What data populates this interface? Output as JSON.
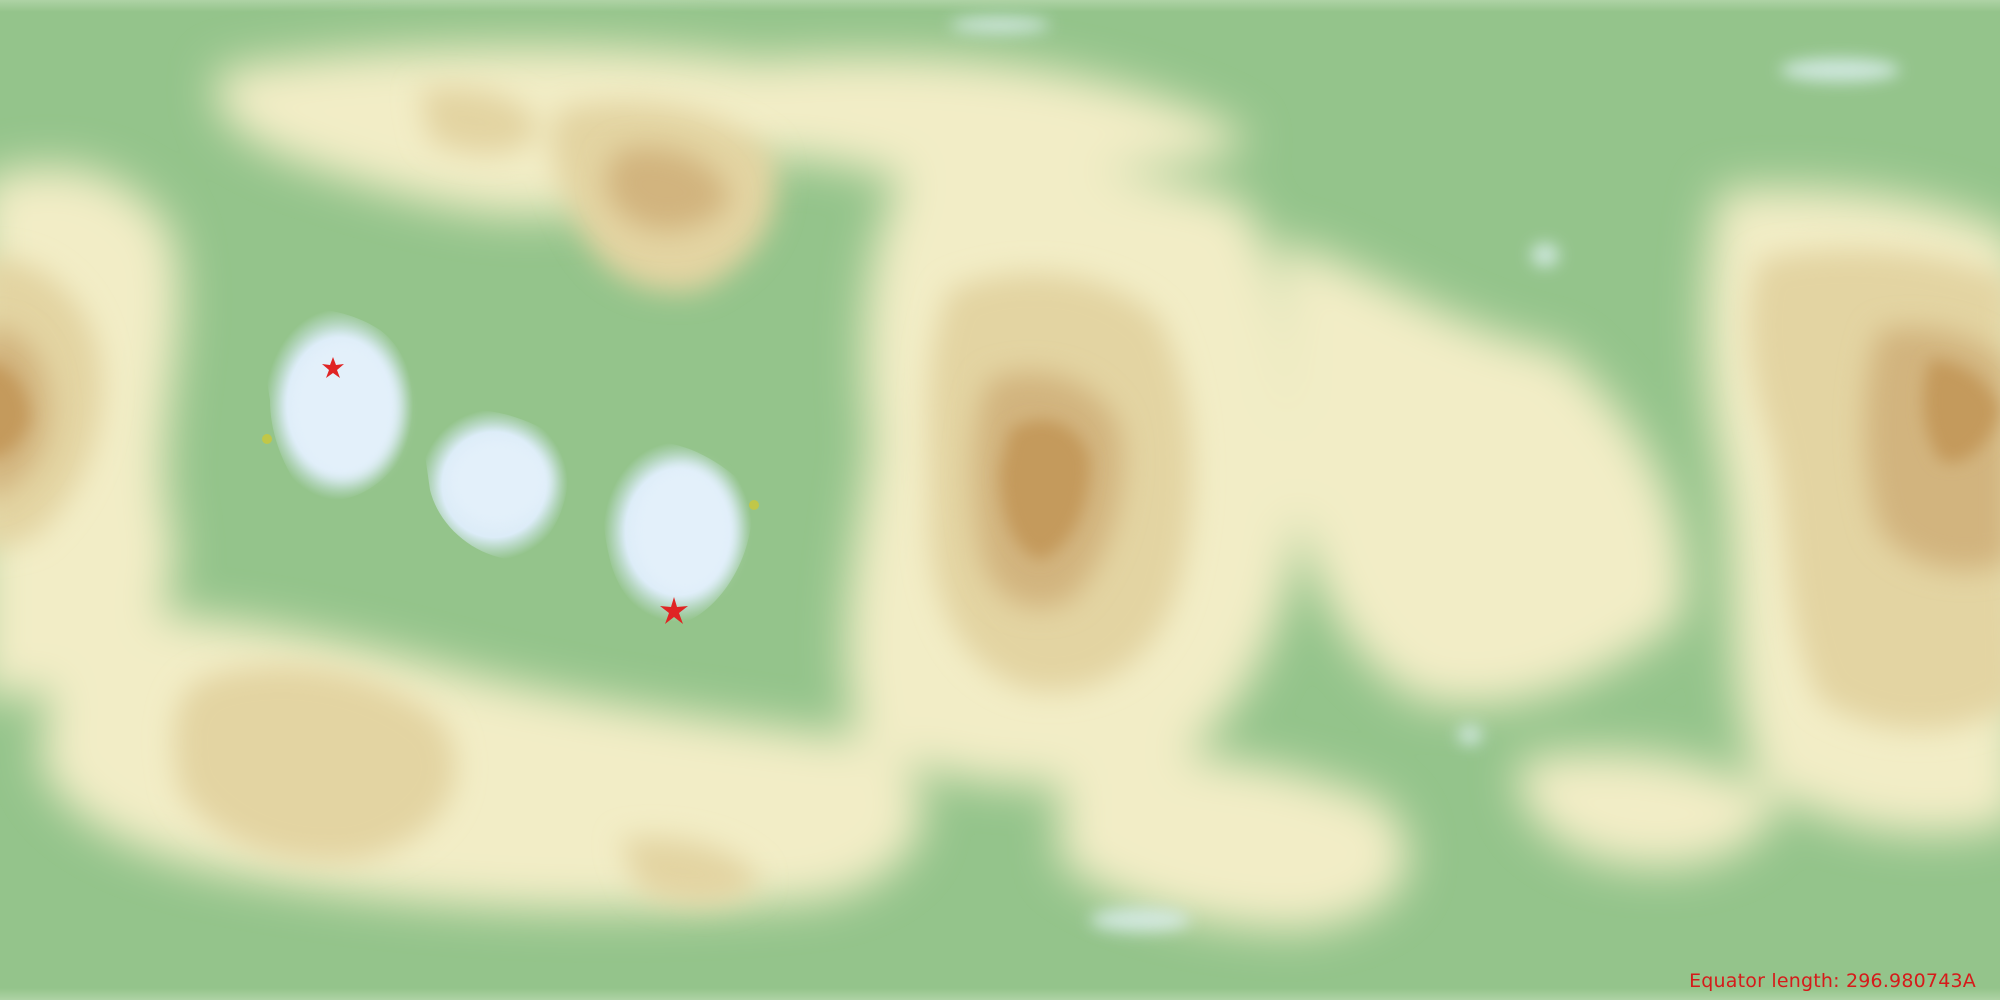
{
  "map": {
    "type": "equirectangular terrain height map",
    "colors": {
      "lowland": "#94c48b",
      "plain": "#f2edc6",
      "upland": "#e3d4a2",
      "highland": "#c8a46a",
      "ice": "#e3f0fa",
      "marker": "#e02424",
      "pole": "#c9c83c"
    },
    "equator_label": "Equator length: 296.980743A",
    "markers": [
      {
        "kind": "star-marker"
      },
      {
        "kind": "star-marker"
      },
      {
        "kind": "pole-point"
      },
      {
        "kind": "pole-point"
      }
    ]
  }
}
